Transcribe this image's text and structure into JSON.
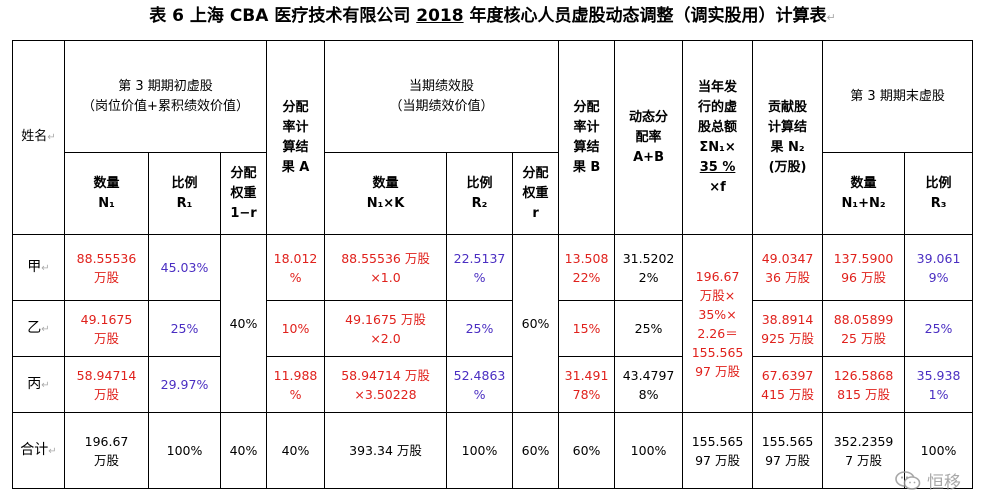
{
  "title": {
    "prefix": "表 6 上海 CBA 医疗技术有限公司 ",
    "year": "2018",
    "suffix": " 年度核心人员虚股动态调整（调实股用）计算表"
  },
  "header": {
    "name": "姓名",
    "initial_group": [
      "第 3 期期初虚股",
      "（岗位价值+累积绩效价值）"
    ],
    "initial_qty": [
      "数量",
      "N₁"
    ],
    "initial_ratio": [
      "比例",
      "R₁"
    ],
    "weight1": [
      "分配",
      "权重",
      "1−r"
    ],
    "alloc_a": [
      "分配",
      "率计",
      "算结",
      "果 A"
    ],
    "perf_group": [
      "当期绩效股",
      "（当期绩效价值）"
    ],
    "perf_qty": [
      "数量",
      "N₁×K"
    ],
    "perf_ratio": [
      "比例",
      "R₂"
    ],
    "weight2": [
      "分配",
      "权重",
      "r"
    ],
    "alloc_b": [
      "分配",
      "率计",
      "算结",
      "果 B"
    ],
    "dyn": [
      "动态分",
      "配率",
      "A+B"
    ],
    "issued": [
      "当年发",
      "行的虚",
      "股总额",
      "ΣN₁×",
      "35 %",
      "×f"
    ],
    "contrib": [
      "贡献股",
      "计算结",
      "果 N₂",
      "(万股)"
    ],
    "final_group": "第 3 期期末虚股",
    "final_qty": [
      "数量",
      "N₁+N₂"
    ],
    "final_ratio": [
      "比例",
      "R₃"
    ]
  },
  "rows": [
    {
      "name": "甲",
      "n1": [
        "88.55536",
        "万股"
      ],
      "r1": "45.03%",
      "a": [
        "18.012",
        "%"
      ],
      "nk": [
        "88.55536 万股",
        "×1.0"
      ],
      "r2": [
        "22.5137",
        "%"
      ],
      "b": [
        "13.508",
        "22%"
      ],
      "ab": [
        "31.5202",
        "2%"
      ],
      "n2": [
        "49.0347",
        "36 万股"
      ],
      "n3": [
        "137.5900",
        "96 万股"
      ],
      "r3": [
        "39.061",
        "9%"
      ]
    },
    {
      "name": "乙",
      "n1": [
        "49.1675",
        "万股"
      ],
      "r1": "25%",
      "a": [
        "10%"
      ],
      "nk": [
        "49.1675 万股",
        "×2.0"
      ],
      "r2": [
        "25%"
      ],
      "b": [
        "15%"
      ],
      "ab": [
        "25%"
      ],
      "n2": [
        "38.8914",
        "925 万股"
      ],
      "n3": [
        "88.05899",
        "25 万股"
      ],
      "r3": "25%"
    },
    {
      "name": "丙",
      "n1": [
        "58.94714",
        "万股"
      ],
      "r1": "29.97%",
      "a": [
        "11.988",
        "%"
      ],
      "nk": [
        "58.94714 万股",
        "×3.50228"
      ],
      "r2": [
        "52.4863",
        "%"
      ],
      "b": [
        "31.491",
        "78%"
      ],
      "ab": [
        "43.4797",
        "8%"
      ],
      "n2": [
        "67.6397",
        "415 万股"
      ],
      "n3": [
        "126.5868",
        "815 万股"
      ],
      "r3": [
        "35.938",
        "1%"
      ]
    }
  ],
  "merged": {
    "weight1": "40%",
    "weight2": "60%",
    "issued": [
      "196.67",
      "万股×",
      "35%×",
      "2.26＝",
      "155.565",
      "97 万股"
    ]
  },
  "total": {
    "name": "合计",
    "n1": [
      "196.67",
      "万股"
    ],
    "r1": "100%",
    "w1": "40%",
    "a": "40%",
    "nk": "393.34 万股",
    "r2": "100%",
    "w2": "60%",
    "b": "60%",
    "ab": "100%",
    "issued": [
      "155.565",
      "97 万股"
    ],
    "n2": [
      "155.565",
      "97 万股"
    ],
    "n3": [
      "352.2359",
      "7 万股"
    ],
    "r3": "100%"
  },
  "watermark": "恒移"
}
